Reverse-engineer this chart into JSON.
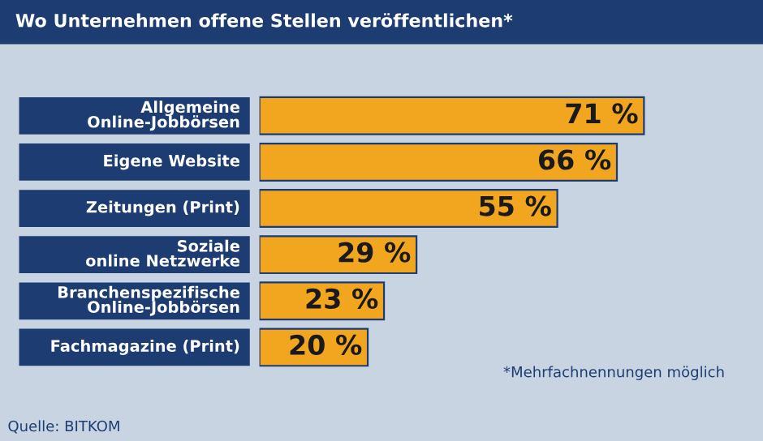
{
  "chart_data": {
    "type": "bar",
    "orientation": "horizontal",
    "title": "Wo Unternehmen offene Stellen veröffentlichen*",
    "categories": [
      "Allgemeine\nOnline-Jobbörsen",
      "Eigene Website",
      "Zeitungen (Print)",
      "Soziale\nonline Netzwerke",
      "Branchenspezifische\nOnline-Jobbörsen",
      "Fachmagazine (Print)"
    ],
    "values": [
      71,
      66,
      55,
      29,
      23,
      20
    ],
    "value_labels": [
      "71 %",
      "66 %",
      "55 %",
      "29 %",
      "23 %",
      "20 %"
    ],
    "color": "#f2a51e",
    "annotations": [
      "*Mehrfachnennungen möglich",
      "Quelle: BITKOM"
    ]
  }
}
